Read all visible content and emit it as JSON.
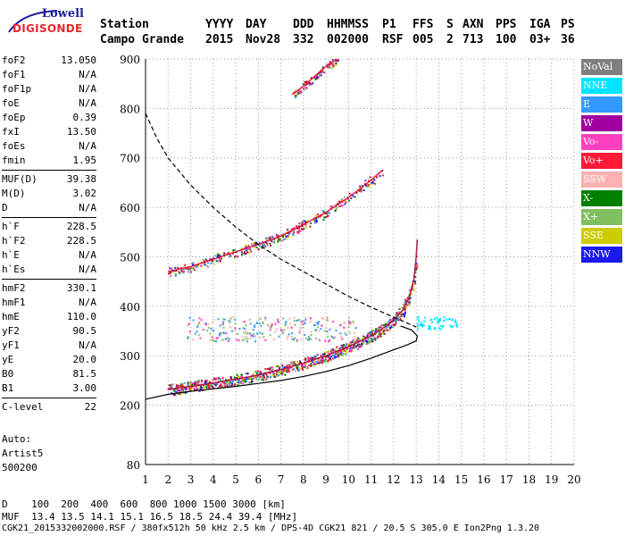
{
  "logo": {
    "top_text": "Lowell",
    "bottom_text": "DIGISONDE"
  },
  "header": {
    "labels": [
      "Station",
      "YYYY",
      "DAY",
      "DDD",
      "HHMMSS",
      "P1",
      "FFS",
      "S",
      "AXN",
      "PPS",
      "IGA",
      "PS"
    ],
    "values": [
      "Campo Grande",
      "2015",
      "Nov28",
      "332",
      "002000",
      "RSF",
      "005",
      "2",
      "713",
      "100",
      "03+",
      "36"
    ]
  },
  "params": {
    "group1": [
      {
        "name": "foF2",
        "value": "13.050"
      },
      {
        "name": "foF1",
        "value": "N/A"
      },
      {
        "name": "foF1p",
        "value": "N/A"
      },
      {
        "name": "foE",
        "value": "N/A"
      },
      {
        "name": "foEp",
        "value": "0.39"
      },
      {
        "name": "fxI",
        "value": "13.50"
      },
      {
        "name": "foEs",
        "value": "N/A"
      },
      {
        "name": "fmin",
        "value": "1.95"
      }
    ],
    "group2": [
      {
        "name": "MUF(D)",
        "value": "39.38"
      },
      {
        "name": "M(D)",
        "value": "3.02"
      },
      {
        "name": "D",
        "value": "N/A"
      }
    ],
    "group3": [
      {
        "name": "h`F",
        "value": "228.5"
      },
      {
        "name": "h`F2",
        "value": "228.5"
      },
      {
        "name": "h`E",
        "value": "N/A"
      },
      {
        "name": "h`Es",
        "value": "N/A"
      }
    ],
    "group4": [
      {
        "name": "hmF2",
        "value": "330.1"
      },
      {
        "name": "hmF1",
        "value": "N/A"
      },
      {
        "name": "hmE",
        "value": "110.0"
      },
      {
        "name": "yF2",
        "value": "90.5"
      },
      {
        "name": "yF1",
        "value": "N/A"
      },
      {
        "name": "yE",
        "value": "20.0"
      },
      {
        "name": "B0",
        "value": "81.5"
      },
      {
        "name": "B1",
        "value": "3.00"
      }
    ],
    "group5": [
      {
        "name": "C-level",
        "value": "22"
      }
    ]
  },
  "auto": [
    "Auto:",
    "Artist5",
    "500200"
  ],
  "legend": [
    {
      "label": "NoVal",
      "color": "#7f7f7f"
    },
    {
      "label": "NNE",
      "color": "#00e5ff"
    },
    {
      "label": "E",
      "color": "#3399ff"
    },
    {
      "label": "W",
      "color": "#a000a0"
    },
    {
      "label": "Vo-",
      "color": "#ff40c0"
    },
    {
      "label": "Vo+",
      "color": "#ff1a3a"
    },
    {
      "label": "SSW",
      "color": "#ffb0b0"
    },
    {
      "label": "X-",
      "color": "#007f00"
    },
    {
      "label": "X+",
      "color": "#80c060"
    },
    {
      "label": "SSE",
      "color": "#cccc00"
    },
    {
      "label": "NNW",
      "color": "#1a1aee"
    }
  ],
  "bottom": {
    "line1": "D    100  200  400  600  800 1000 1500 3000 [km]",
    "line2": "MUF  13.4 13.5 14.1 15.1 16.5 18.5 24.4 39.4 [MHz]",
    "line3": "CGK21_2015332002000.RSF / 380fx512h 50 kHz 2.5 km / DPS-4D CGK21 821 / 20.5 S 305.0 E Ion2Png 1.3.20"
  },
  "chart_data": {
    "type": "scatter",
    "xlabel": "",
    "ylabel": "",
    "xlim": [
      1,
      20
    ],
    "ylim": [
      80,
      900
    ],
    "x_ticks": [
      1,
      2,
      3,
      4,
      5,
      6,
      7,
      8,
      9,
      10,
      11,
      12,
      13,
      14,
      15,
      16,
      17,
      18,
      19,
      20
    ],
    "y_ticks": [
      80,
      200,
      300,
      400,
      500,
      600,
      700,
      800,
      900
    ],
    "grid": true,
    "series": [
      {
        "name": "O-trace (F2)",
        "color": "#b0103a",
        "x": [
          2.0,
          3.0,
          4.0,
          5.0,
          6.0,
          7.0,
          8.0,
          9.0,
          10.0,
          11.0,
          11.5,
          12.0,
          12.4,
          12.7,
          12.9,
          13.0,
          13.05
        ],
        "y": [
          232,
          238,
          245,
          252,
          261,
          272,
          285,
          300,
          318,
          340,
          355,
          372,
          392,
          420,
          455,
          500,
          535
        ]
      },
      {
        "name": "second hop (2F)",
        "color": "#e0103a",
        "x": [
          2.0,
          3.0,
          4.0,
          5.0,
          6.0,
          7.0,
          8.0,
          9.0,
          10.0,
          11.0,
          11.5
        ],
        "y": [
          470,
          480,
          495,
          510,
          525,
          542,
          565,
          590,
          620,
          655,
          675
        ]
      },
      {
        "name": "third hop (3F)",
        "color": "#e0103a",
        "x": [
          7.5,
          8.0,
          8.5,
          9.0,
          9.5
        ],
        "y": [
          828,
          845,
          865,
          885,
          900
        ]
      },
      {
        "name": "profile",
        "color": "#000000",
        "x": [
          1.0,
          2.0,
          3.0,
          4.0,
          5.0,
          6.0,
          7.0,
          8.0,
          9.0,
          10.0,
          11.0,
          12.0,
          12.6,
          13.0,
          13.05,
          12.8,
          12.3
        ],
        "y": [
          212,
          222,
          228,
          233,
          238,
          244,
          250,
          258,
          268,
          280,
          295,
          312,
          322,
          330,
          340,
          352,
          360
        ]
      },
      {
        "name": "MUF curve",
        "color": "#000000",
        "dash": true,
        "x": [
          1.0,
          1.5,
          2.0,
          3.0,
          4.0,
          5.0,
          6.0,
          7.0,
          8.0,
          9.0,
          10.0,
          11.0,
          12.0,
          13.0
        ],
        "y": [
          790,
          740,
          700,
          645,
          600,
          560,
          525,
          495,
          470,
          445,
          420,
          398,
          378,
          358
        ]
      }
    ]
  }
}
